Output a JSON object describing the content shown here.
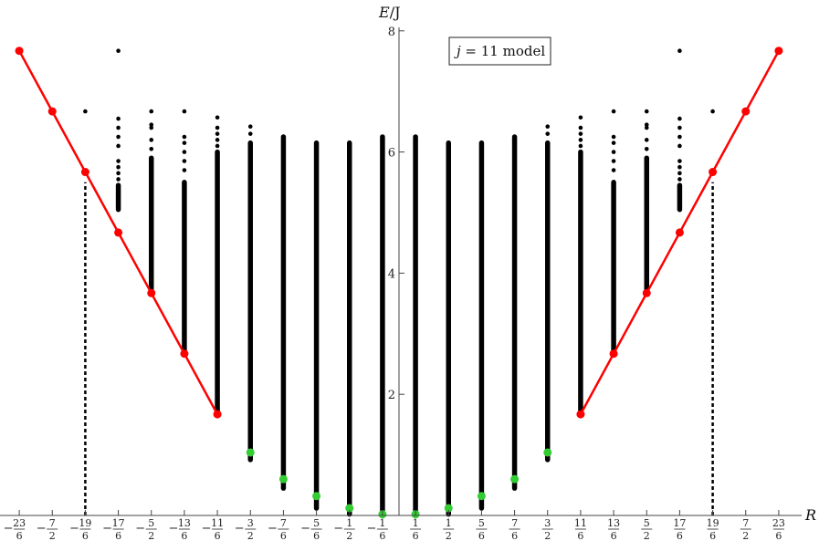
{
  "chart_data": {
    "type": "scatter",
    "title": "",
    "xlabel": "R",
    "ylabel_italic": "E",
    "ylabel_rest": "/J",
    "annotation": {
      "prefix": "j",
      "rest": " = 11 model"
    },
    "ylim": [
      0,
      8.2
    ],
    "yticks": [
      2,
      4,
      6,
      8
    ],
    "xticks": [
      {
        "label": "-23/6",
        "value": -3.8333
      },
      {
        "label": "-7/2",
        "value": -3.5
      },
      {
        "label": "-19/6",
        "value": -3.1667
      },
      {
        "label": "-17/6",
        "value": -2.8333
      },
      {
        "label": "-5/2",
        "value": -2.5
      },
      {
        "label": "-13/6",
        "value": -2.1667
      },
      {
        "label": "-11/6",
        "value": -1.8333
      },
      {
        "label": "-3/2",
        "value": -1.5
      },
      {
        "label": "-7/6",
        "value": -1.1667
      },
      {
        "label": "-5/6",
        "value": -0.8333
      },
      {
        "label": "-1/2",
        "value": -0.5
      },
      {
        "label": "-1/6",
        "value": -0.1667
      },
      {
        "label": "1/6",
        "value": 0.1667
      },
      {
        "label": "1/2",
        "value": 0.5
      },
      {
        "label": "5/6",
        "value": 0.8333
      },
      {
        "label": "7/6",
        "value": 1.1667
      },
      {
        "label": "3/2",
        "value": 1.5
      },
      {
        "label": "11/6",
        "value": 1.8333
      },
      {
        "label": "13/6",
        "value": 2.1667
      },
      {
        "label": "5/2",
        "value": 2.5
      },
      {
        "label": "17/6",
        "value": 2.8333
      },
      {
        "label": "19/6",
        "value": 3.1667
      },
      {
        "label": "7/2",
        "value": 3.5
      },
      {
        "label": "23/6",
        "value": 3.8333
      }
    ],
    "series": [
      {
        "color": "#ff0000",
        "style": "line-markers",
        "x": [
          -3.8333,
          -3.5,
          -3.1667,
          -2.8333,
          -2.5,
          -2.1667,
          -1.8333
        ],
        "y": [
          7.67,
          6.67,
          5.67,
          4.67,
          3.67,
          2.67,
          1.67
        ]
      },
      {
        "color": "#ff0000",
        "style": "line-markers",
        "x": [
          1.8333,
          2.1667,
          2.5,
          2.8333,
          3.1667,
          3.5,
          3.8333
        ],
        "y": [
          1.67,
          2.67,
          3.67,
          4.67,
          5.67,
          6.67,
          7.67
        ]
      },
      {
        "color": "#33cc33",
        "style": "markers",
        "x": [
          -1.5,
          -1.1667,
          -0.8333,
          -0.5,
          -0.1667,
          0.1667,
          0.5,
          0.8333,
          1.1667,
          1.5
        ],
        "y": [
          1.04,
          0.6,
          0.32,
          0.12,
          0.02,
          0.02,
          0.12,
          0.32,
          0.6,
          1.04
        ]
      }
    ],
    "spectrum": [
      {
        "x": -3.5,
        "min": 6.67,
        "max": 6.67,
        "extra": []
      },
      {
        "x": -3.1667,
        "min": 6.67,
        "max": 6.67,
        "extra": []
      },
      {
        "x": -2.8333,
        "min": 5.05,
        "max": 5.45,
        "extra": [
          5.55,
          5.65,
          5.75,
          5.85,
          6.1,
          6.25,
          6.4,
          6.55,
          7.67
        ]
      },
      {
        "x": -2.5,
        "min": 3.67,
        "max": 5.9,
        "extra": [
          6.05,
          6.2,
          6.4,
          6.45,
          6.67
        ]
      },
      {
        "x": -2.1667,
        "min": 2.67,
        "max": 5.5,
        "extra": [
          5.7,
          5.85,
          6.0,
          6.15,
          6.25,
          6.67
        ]
      },
      {
        "x": -1.8333,
        "min": 1.67,
        "max": 6.0,
        "extra": [
          6.1,
          6.2,
          6.3,
          6.4,
          6.57
        ]
      },
      {
        "x": -1.5,
        "min": 0.92,
        "max": 6.15,
        "extra": [
          6.3,
          6.42
        ]
      },
      {
        "x": -1.1667,
        "min": 0.45,
        "max": 6.25,
        "extra": []
      },
      {
        "x": -0.8333,
        "min": 0.12,
        "max": 6.15,
        "extra": []
      },
      {
        "x": -0.5,
        "min": 0.02,
        "max": 6.15,
        "extra": []
      },
      {
        "x": -0.1667,
        "min": 0.0,
        "max": 6.25,
        "extra": []
      },
      {
        "x": 0.1667,
        "min": 0.0,
        "max": 6.25,
        "extra": []
      },
      {
        "x": 0.5,
        "min": 0.02,
        "max": 6.15,
        "extra": []
      },
      {
        "x": 0.8333,
        "min": 0.12,
        "max": 6.15,
        "extra": []
      },
      {
        "x": 1.1667,
        "min": 0.45,
        "max": 6.25,
        "extra": []
      },
      {
        "x": 1.5,
        "min": 0.92,
        "max": 6.15,
        "extra": [
          6.3,
          6.42
        ]
      },
      {
        "x": 1.8333,
        "min": 1.67,
        "max": 6.0,
        "extra": [
          6.1,
          6.2,
          6.3,
          6.4,
          6.57
        ]
      },
      {
        "x": 2.1667,
        "min": 2.67,
        "max": 5.5,
        "extra": [
          5.7,
          5.85,
          6.0,
          6.15,
          6.25,
          6.67
        ]
      },
      {
        "x": 2.5,
        "min": 3.67,
        "max": 5.9,
        "extra": [
          6.05,
          6.2,
          6.4,
          6.45,
          6.67
        ]
      },
      {
        "x": 2.8333,
        "min": 5.05,
        "max": 5.45,
        "extra": [
          5.55,
          5.65,
          5.75,
          5.85,
          6.1,
          6.25,
          6.4,
          6.55,
          7.67
        ]
      },
      {
        "x": 3.1667,
        "min": 6.67,
        "max": 6.67,
        "extra": []
      }
    ],
    "dashed_lines": [
      {
        "x": -3.1667,
        "from": 0,
        "to": 5.5
      },
      {
        "x": 3.1667,
        "from": 0,
        "to": 5.5
      }
    ]
  }
}
